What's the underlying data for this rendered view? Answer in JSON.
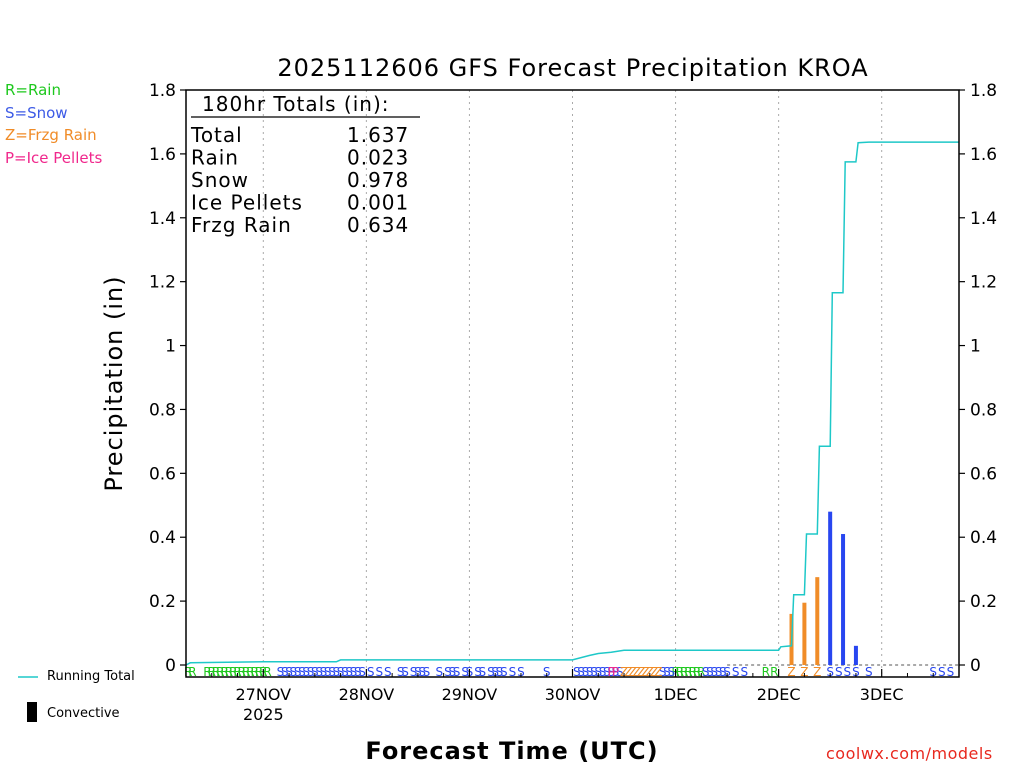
{
  "precip_legend": [
    {
      "label": "R=Rain",
      "color": "#1ec81e"
    },
    {
      "label": "S=Snow",
      "color": "#3c5ae6"
    },
    {
      "label": "Z=Frzg Rain",
      "color": "#f08c28"
    },
    {
      "label": "P=Ice Pellets",
      "color": "#f0288c"
    }
  ],
  "series_legend": {
    "running_total": "Running Total",
    "convective": "Convective"
  },
  "source_label": "coolwx.com/models",
  "colors": {
    "running_total": "#1ec8c8",
    "rain": "#1ec81e",
    "snow": "#2846f0",
    "frzg_rain": "#f08c28",
    "ice_pellets": "#f0288c",
    "convective": "#000000"
  },
  "chart_data": {
    "type": "bar",
    "title": "2025112606 GFS Forecast Precipitation KROA",
    "xlabel": "Forecast Time (UTC)",
    "ylabel": "Precipitation (in)",
    "ylim": [
      0,
      1.8
    ],
    "yticks": [
      "0",
      "0.2",
      "0.4",
      "0.6",
      "0.8",
      "1",
      "1.2",
      "1.4",
      "1.6",
      "1.8"
    ],
    "xlim_hours": [
      6,
      186
    ],
    "xticks": [
      {
        "hour": 24,
        "label": "27NOV",
        "sublabel": "2025"
      },
      {
        "hour": 48,
        "label": "28NOV"
      },
      {
        "hour": 72,
        "label": "29NOV"
      },
      {
        "hour": 96,
        "label": "30NOV"
      },
      {
        "hour": 120,
        "label": "1DEC"
      },
      {
        "hour": 144,
        "label": "2DEC"
      },
      {
        "hour": 168,
        "label": "3DEC"
      }
    ],
    "grid": "vertical dotted at day boundaries",
    "totals_box": {
      "header": "180hr Totals (in):",
      "rows": [
        {
          "label": "Total",
          "value": "1.637"
        },
        {
          "label": "Rain",
          "value": "0.023"
        },
        {
          "label": "Snow",
          "value": "0.978"
        },
        {
          "label": "Ice Pellets",
          "value": "0.001"
        },
        {
          "label": "Frzg Rain",
          "value": "0.634"
        }
      ]
    },
    "bars": [
      {
        "hour": 147,
        "value": 0.16,
        "type": "frzg_rain"
      },
      {
        "hour": 150,
        "value": 0.195,
        "type": "frzg_rain"
      },
      {
        "hour": 153,
        "value": 0.275,
        "type": "frzg_rain"
      },
      {
        "hour": 156,
        "value": 0.48,
        "type": "snow"
      },
      {
        "hour": 159,
        "value": 0.41,
        "type": "snow"
      },
      {
        "hour": 162,
        "value": 0.06,
        "type": "snow"
      }
    ],
    "running_total": [
      [
        6,
        0.0
      ],
      [
        7,
        0.007
      ],
      [
        24,
        0.01
      ],
      [
        41,
        0.01
      ],
      [
        42,
        0.016
      ],
      [
        96,
        0.016
      ],
      [
        100,
        0.03
      ],
      [
        102,
        0.036
      ],
      [
        105,
        0.04
      ],
      [
        108,
        0.046
      ],
      [
        144,
        0.046
      ],
      [
        144.5,
        0.057
      ],
      [
        147,
        0.06
      ],
      [
        147.5,
        0.22
      ],
      [
        150,
        0.22
      ],
      [
        150.5,
        0.41
      ],
      [
        153,
        0.41
      ],
      [
        153.5,
        0.685
      ],
      [
        156,
        0.685
      ],
      [
        156.5,
        1.165
      ],
      [
        159,
        1.165
      ],
      [
        159.5,
        1.575
      ],
      [
        162,
        1.575
      ],
      [
        162.5,
        1.635
      ],
      [
        165,
        1.637
      ],
      [
        186,
        1.637
      ]
    ],
    "type_markers": {
      "rain": [
        6.5,
        7.5,
        11,
        12,
        13,
        14,
        15,
        16,
        17,
        18,
        19,
        20,
        21,
        22,
        23,
        24,
        25,
        120,
        121,
        122,
        123,
        124,
        125,
        126,
        141,
        143
      ],
      "snow": [
        28,
        29,
        30,
        31,
        32,
        33,
        34,
        35,
        36,
        37,
        38,
        39,
        40,
        41,
        42,
        43,
        44,
        45,
        46,
        47,
        49,
        51,
        53,
        56,
        57,
        59,
        60,
        61,
        62,
        65,
        67,
        68,
        69,
        71,
        72,
        74,
        75,
        77,
        78,
        79,
        80,
        82,
        84,
        90,
        97,
        98,
        99,
        100,
        101,
        102,
        103,
        104,
        105,
        106,
        107,
        117,
        118,
        119,
        127,
        128,
        129,
        130,
        131,
        132,
        134,
        136,
        156,
        158,
        160,
        162,
        165,
        180,
        182,
        184
      ],
      "frzg_rain": [
        147,
        150,
        153,
        108,
        109,
        110,
        111,
        112,
        113,
        114,
        115,
        116
      ],
      "ice_pellets": [
        105,
        106
      ]
    }
  }
}
